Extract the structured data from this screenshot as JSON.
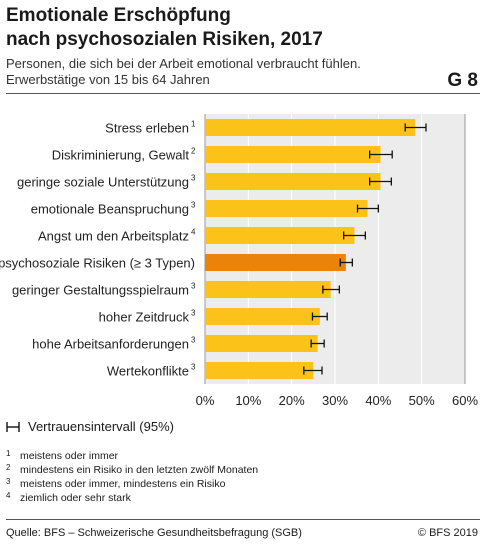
{
  "header": {
    "title_line1": "Emotionale Erschöpfung",
    "title_line2": "nach psychosozialen Risiken, 2017",
    "subtitle_line1": "Personen, die sich bei der Arbeit emotional verbraucht fühlen.",
    "subtitle_line2": "Erwerbstätige von 15 bis 64 Jahren",
    "code": "G 8"
  },
  "legend": {
    "ci_label": "Vertrauensintervall (95%)"
  },
  "footnotes": [
    {
      "num": "1",
      "text": "meistens oder immer"
    },
    {
      "num": "2",
      "text": "mindestens ein Risiko in den letzten zwölf Monaten"
    },
    {
      "num": "3",
      "text": "meistens oder immer, mindestens ein Risiko"
    },
    {
      "num": "4",
      "text": "ziemlich oder sehr stark"
    }
  ],
  "footer": {
    "source": "Quelle: BFS – Schweizerische Gesundheitsbefragung (SGB)",
    "copyright": "© BFS 2019"
  },
  "colors": {
    "bar": "#fbc21a",
    "highlight": "#ea8309",
    "plot_bg": "#ececec"
  },
  "chart_data": {
    "type": "bar",
    "orientation": "horizontal",
    "categories": [
      {
        "label": "Stress erleben",
        "note": "1"
      },
      {
        "label": "Diskriminierung, Gewalt",
        "note": "2"
      },
      {
        "label": "geringe soziale Unterstützung",
        "note": "3"
      },
      {
        "label": "emotionale Beanspruchung",
        "note": "3"
      },
      {
        "label": "Angst um den Arbeitsplatz",
        "note": "4"
      },
      {
        "label": "psychosoziale Risiken (≥ 3 Typen)",
        "note": ""
      },
      {
        "label": "geringer Gestaltungsspielraum",
        "note": "3"
      },
      {
        "label": "hoher Zeitdruck",
        "note": "3"
      },
      {
        "label": "hohe Arbeitsanforderungen",
        "note": "3"
      },
      {
        "label": "Wertekonflikte",
        "note": "3"
      }
    ],
    "values": [
      48.5,
      40.5,
      40.5,
      37.5,
      34.5,
      32.5,
      29,
      26.5,
      26,
      25
    ],
    "ci_low": [
      46.2,
      38.0,
      38.0,
      35.2,
      32.0,
      31.2,
      27.2,
      24.8,
      24.5,
      22.8
    ],
    "ci_high": [
      51.0,
      43.2,
      43.0,
      40.0,
      37.0,
      34.0,
      31.0,
      28.2,
      27.5,
      27.0
    ],
    "highlight_index": 5,
    "xlim": [
      0,
      60
    ],
    "x_ticks": [
      "0%",
      "10%",
      "20%",
      "30%",
      "40%",
      "50%",
      "60%"
    ],
    "grid": true
  }
}
